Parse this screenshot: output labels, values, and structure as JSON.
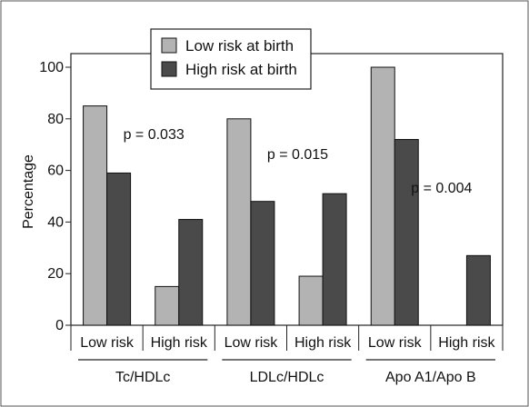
{
  "chart_data": {
    "type": "bar",
    "ylabel": "Percentage",
    "xlabel": "",
    "ylim": [
      0,
      100
    ],
    "yticks": [
      0,
      20,
      40,
      60,
      80,
      100
    ],
    "grid": false,
    "legend_position": "top-left",
    "groups": [
      {
        "label": "Tc/HDLc",
        "categories": [
          "Low risk",
          "High risk"
        ],
        "pvalue": "p = 0.033"
      },
      {
        "label": "LDLc/HDLc",
        "categories": [
          "Low risk",
          "High risk"
        ],
        "pvalue": "p = 0.015"
      },
      {
        "label": "Apo A1/Apo B",
        "categories": [
          "Low risk",
          "High risk"
        ],
        "pvalue": "p = 0.004"
      }
    ],
    "categories": [
      "Low risk",
      "High risk",
      "Low risk",
      "High risk",
      "Low risk",
      "High risk"
    ],
    "series": [
      {
        "name": "Low risk at birth",
        "color": "#b3b3b3",
        "values": [
          85,
          15,
          80,
          19,
          100,
          0
        ]
      },
      {
        "name": "High risk at birth",
        "color": "#4a4a4a",
        "values": [
          59,
          41,
          48,
          51,
          72,
          27
        ]
      }
    ]
  }
}
